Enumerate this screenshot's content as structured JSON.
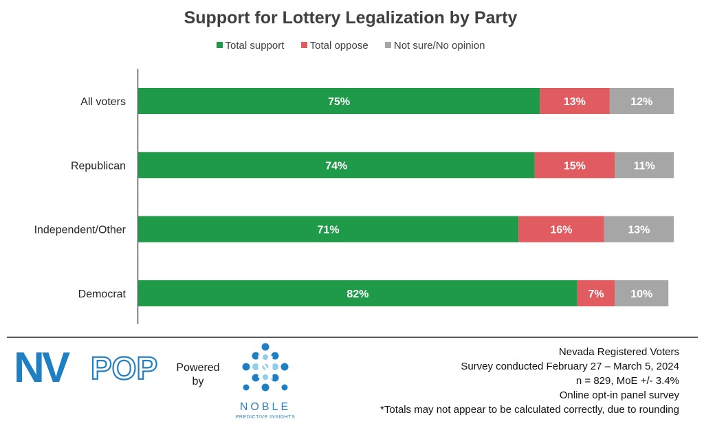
{
  "chart_data": {
    "type": "bar",
    "orientation": "horizontal",
    "stacked": true,
    "title": "Support for Lottery Legalization by Party",
    "categories": [
      "All voters",
      "Republican",
      "Independent/Other",
      "Democrat"
    ],
    "series": [
      {
        "name": "Total support",
        "values": [
          75,
          74,
          71,
          82
        ],
        "labels": [
          "75%",
          "74%",
          "71%",
          "82%"
        ],
        "color": "#1e9a48"
      },
      {
        "name": "Total oppose",
        "values": [
          13,
          15,
          16,
          7
        ],
        "labels": [
          "13%",
          "15%",
          "16%",
          "7%"
        ],
        "color": "#e05c60"
      },
      {
        "name": "Not sure/No opinion",
        "values": [
          12,
          11,
          13,
          10
        ],
        "labels": [
          "12%",
          "11%",
          "13%",
          "10%"
        ],
        "color": "#a6a6a6"
      }
    ],
    "xlim": [
      0,
      100
    ],
    "legend": "top",
    "grid": false
  },
  "footer": {
    "brand": {
      "nv": "NV",
      "pop": "POP"
    },
    "powered_by": "Powered by",
    "partner_name": "NOBLE",
    "partner_tagline": "PREDICTIVE INSIGHTS",
    "notes": [
      "Nevada Registered Voters",
      "Survey conducted February 27 – March 5, 2024",
      "n = 829, MoE +/- 3.4%",
      "Online opt-in panel survey",
      "*Totals may not appear to be calculated correctly, due to rounding"
    ]
  },
  "colors": {
    "brand_blue": "#1f7fc4",
    "partner_blue": "#2a82c4"
  }
}
